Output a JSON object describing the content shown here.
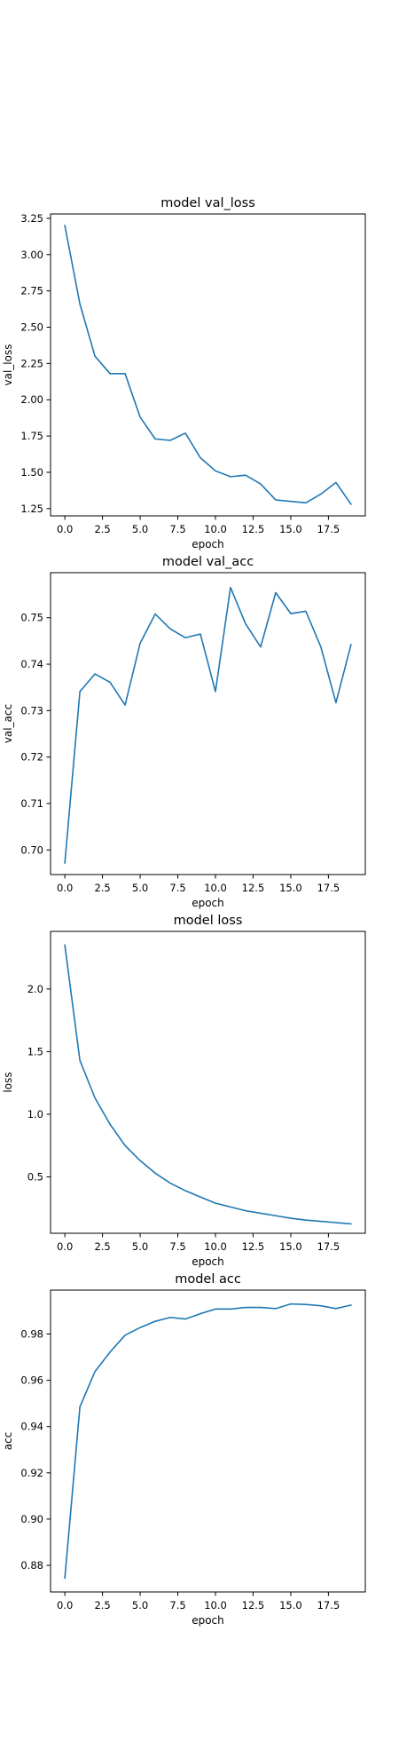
{
  "chart_data": [
    {
      "type": "line",
      "title": "model val_loss",
      "xlabel": "epoch",
      "ylabel": "val_loss",
      "color": "#1f77b4",
      "xlim": [
        -0.95,
        19.95
      ],
      "ylim": [
        1.2,
        3.28
      ],
      "xticks": [
        0.0,
        2.5,
        5.0,
        7.5,
        10.0,
        12.5,
        15.0,
        17.5
      ],
      "xtick_labels": [
        "0.0",
        "2.5",
        "5.0",
        "7.5",
        "10.0",
        "12.5",
        "15.0",
        "17.5"
      ],
      "yticks": [
        1.25,
        1.5,
        1.75,
        2.0,
        2.25,
        2.5,
        2.75,
        3.0,
        3.25
      ],
      "ytick_labels": [
        "1.25",
        "1.50",
        "1.75",
        "2.00",
        "2.25",
        "2.50",
        "2.75",
        "3.00",
        "3.25"
      ],
      "x": [
        0,
        1,
        2,
        3,
        4,
        5,
        6,
        7,
        8,
        9,
        10,
        11,
        12,
        13,
        14,
        15,
        16,
        17,
        18,
        19
      ],
      "values": [
        3.2,
        2.66,
        2.3,
        2.18,
        2.18,
        1.88,
        1.73,
        1.72,
        1.77,
        1.6,
        1.51,
        1.47,
        1.48,
        1.42,
        1.31,
        1.3,
        1.29,
        1.35,
        1.43,
        1.28
      ]
    },
    {
      "type": "line",
      "title": "model val_acc",
      "xlabel": "epoch",
      "ylabel": "val_acc",
      "color": "#1f77b4",
      "xlim": [
        -0.95,
        19.95
      ],
      "ylim": [
        0.6947,
        0.7597
      ],
      "xticks": [
        0.0,
        2.5,
        5.0,
        7.5,
        10.0,
        12.5,
        15.0,
        17.5
      ],
      "xtick_labels": [
        "0.0",
        "2.5",
        "5.0",
        "7.5",
        "10.0",
        "12.5",
        "15.0",
        "17.5"
      ],
      "yticks": [
        0.7,
        0.71,
        0.72,
        0.73,
        0.74,
        0.75
      ],
      "ytick_labels": [
        "0.70",
        "0.71",
        "0.72",
        "0.73",
        "0.74",
        "0.75"
      ],
      "x": [
        0,
        1,
        2,
        3,
        4,
        5,
        6,
        7,
        8,
        9,
        10,
        11,
        12,
        13,
        14,
        15,
        16,
        17,
        18,
        19
      ],
      "values": [
        0.6972,
        0.7341,
        0.7379,
        0.7361,
        0.7312,
        0.7445,
        0.7508,
        0.7476,
        0.7457,
        0.7465,
        0.7341,
        0.7565,
        0.7487,
        0.7437,
        0.7554,
        0.7509,
        0.7514,
        0.7437,
        0.7317,
        0.7442
      ]
    },
    {
      "type": "line",
      "title": "model loss",
      "xlabel": "epoch",
      "ylabel": "loss",
      "color": "#1f77b4",
      "xlim": [
        -0.95,
        19.95
      ],
      "ylim": [
        0.05,
        2.46
      ],
      "xticks": [
        0.0,
        2.5,
        5.0,
        7.5,
        10.0,
        12.5,
        15.0,
        17.5
      ],
      "xtick_labels": [
        "0.0",
        "2.5",
        "5.0",
        "7.5",
        "10.0",
        "12.5",
        "15.0",
        "17.5"
      ],
      "yticks": [
        0.5,
        1.0,
        1.5,
        2.0
      ],
      "ytick_labels": [
        "0.5",
        "1.0",
        "1.5",
        "2.0"
      ],
      "x": [
        0,
        1,
        2,
        3,
        4,
        5,
        6,
        7,
        8,
        9,
        10,
        11,
        12,
        13,
        14,
        15,
        16,
        17,
        18,
        19
      ],
      "values": [
        2.35,
        1.43,
        1.13,
        0.92,
        0.75,
        0.63,
        0.53,
        0.45,
        0.39,
        0.34,
        0.29,
        0.26,
        0.23,
        0.21,
        0.19,
        0.17,
        0.155,
        0.145,
        0.135,
        0.125
      ]
    },
    {
      "type": "line",
      "title": "model acc",
      "xlabel": "epoch",
      "ylabel": "acc",
      "color": "#1f77b4",
      "xlim": [
        -0.95,
        19.95
      ],
      "ylim": [
        0.8685,
        0.999
      ],
      "xticks": [
        0.0,
        2.5,
        5.0,
        7.5,
        10.0,
        12.5,
        15.0,
        17.5
      ],
      "xtick_labels": [
        "0.0",
        "2.5",
        "5.0",
        "7.5",
        "10.0",
        "12.5",
        "15.0",
        "17.5"
      ],
      "yticks": [
        0.88,
        0.9,
        0.92,
        0.94,
        0.96,
        0.98
      ],
      "ytick_labels": [
        "0.88",
        "0.90",
        "0.92",
        "0.94",
        "0.96",
        "0.98"
      ],
      "x": [
        0,
        1,
        2,
        3,
        4,
        5,
        6,
        7,
        8,
        9,
        10,
        11,
        12,
        13,
        14,
        15,
        16,
        17,
        18,
        19
      ],
      "values": [
        0.8745,
        0.9485,
        0.9638,
        0.9722,
        0.9795,
        0.9828,
        0.9855,
        0.9872,
        0.9865,
        0.9888,
        0.9908,
        0.9908,
        0.9915,
        0.9915,
        0.991,
        0.993,
        0.9928,
        0.9922,
        0.991,
        0.9925
      ]
    }
  ]
}
